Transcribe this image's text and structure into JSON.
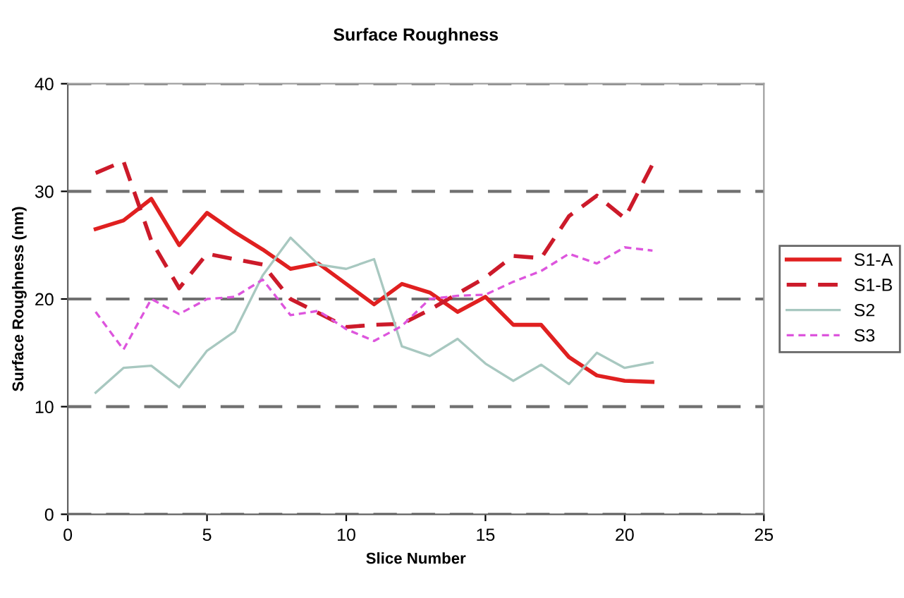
{
  "chart_data": {
    "type": "line",
    "title": "Surface Roughness",
    "xlabel": "Slice Number",
    "ylabel": "Surface Roughness (nm)",
    "x": [
      1,
      2,
      3,
      4,
      5,
      6,
      7,
      8,
      9,
      10,
      11,
      12,
      13,
      14,
      15,
      16,
      17,
      18,
      19,
      20,
      21
    ],
    "xlim": [
      0,
      25
    ],
    "xticks": [
      0,
      5,
      10,
      15,
      20,
      25
    ],
    "ylim": [
      0,
      40
    ],
    "yticks": [
      0,
      10,
      20,
      30,
      40
    ],
    "grid": "y",
    "legend": "right",
    "series": [
      {
        "name": "S1-A",
        "color": "#e02020",
        "line_style": "solid",
        "values": [
          26.5,
          27.3,
          29.3,
          25,
          28,
          26.2,
          24.6,
          22.8,
          23.3,
          21.4,
          19.5,
          21.4,
          20.6,
          18.8,
          20.2,
          17.6,
          17.6,
          14.6,
          12.9,
          12.4,
          12.3
        ]
      },
      {
        "name": "S1-B",
        "color": "#cc1a2a",
        "line_style": "dashed",
        "values": [
          31.7,
          32.8,
          25.4,
          21,
          24.2,
          23.7,
          23.2,
          20,
          18.7,
          17.4,
          17.6,
          17.7,
          19,
          20.5,
          22,
          24,
          23.8,
          27.7,
          29.6,
          27.5,
          32.5
        ]
      },
      {
        "name": "S2",
        "color": "#a8c8c0",
        "line_style": "solid",
        "values": [
          11.3,
          13.6,
          13.8,
          11.8,
          15.2,
          17,
          22.2,
          25.7,
          23.2,
          22.8,
          23.7,
          15.6,
          14.7,
          16.3,
          14,
          12.4,
          13.9,
          12.1,
          15,
          13.6,
          14.1
        ]
      },
      {
        "name": "S3",
        "color": "#dd55dd",
        "line_style": "dotted",
        "values": [
          18.8,
          15.3,
          20,
          18.6,
          20,
          20.2,
          21.8,
          18.5,
          18.9,
          17.2,
          16.1,
          17.5,
          20,
          20.3,
          20.4,
          21.6,
          22.6,
          24.2,
          23.3,
          24.8,
          24.5
        ]
      }
    ]
  }
}
